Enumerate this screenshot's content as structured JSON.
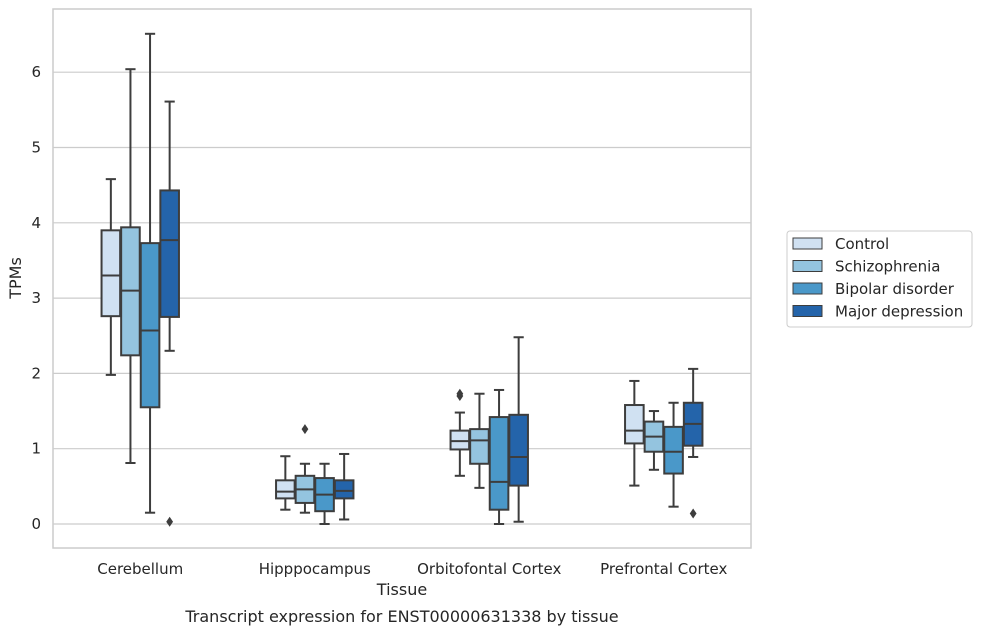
{
  "chart_data": {
    "type": "box",
    "caption": "Transcript expression for ENST00000631338 by tissue",
    "xlabel": "Tissue",
    "ylabel": "TPMs",
    "ylim": [
      -0.32,
      6.85
    ],
    "yticks": [
      0,
      1,
      2,
      3,
      4,
      5,
      6
    ],
    "grid": "horizontal",
    "legend_position": "right",
    "categories": [
      "Cerebellum",
      "Hipppocampus",
      "Orbitofontal Cortex",
      "Prefrontal Cortex"
    ],
    "series": [
      {
        "name": "Control",
        "color": "#d0e1f2",
        "boxes": [
          {
            "whislo": 1.98,
            "q1": 2.76,
            "med": 3.3,
            "q3": 3.9,
            "whishi": 4.58,
            "fliers": []
          },
          {
            "whislo": 0.19,
            "q1": 0.34,
            "med": 0.43,
            "q3": 0.58,
            "whishi": 0.9,
            "fliers": []
          },
          {
            "whislo": 0.64,
            "q1": 0.99,
            "med": 1.1,
            "q3": 1.24,
            "whishi": 1.48,
            "fliers": [
              1.7,
              1.73
            ]
          },
          {
            "whislo": 0.51,
            "q1": 1.07,
            "med": 1.24,
            "q3": 1.58,
            "whishi": 1.9,
            "fliers": []
          }
        ]
      },
      {
        "name": "Schizophrenia",
        "color": "#94c4df",
        "boxes": [
          {
            "whislo": 0.81,
            "q1": 2.24,
            "med": 3.1,
            "q3": 3.94,
            "whishi": 6.04,
            "fliers": []
          },
          {
            "whislo": 0.15,
            "q1": 0.28,
            "med": 0.46,
            "q3": 0.64,
            "whishi": 0.8,
            "fliers": [
              1.26
            ]
          },
          {
            "whislo": 0.48,
            "q1": 0.8,
            "med": 1.11,
            "q3": 1.26,
            "whishi": 1.73,
            "fliers": []
          },
          {
            "whislo": 0.72,
            "q1": 0.96,
            "med": 1.16,
            "q3": 1.36,
            "whishi": 1.5,
            "fliers": []
          }
        ]
      },
      {
        "name": "Bipolar disorder",
        "color": "#4a98c9",
        "boxes": [
          {
            "whislo": 0.15,
            "q1": 1.55,
            "med": 2.57,
            "q3": 3.73,
            "whishi": 6.51,
            "fliers": []
          },
          {
            "whislo": 0.0,
            "q1": 0.17,
            "med": 0.39,
            "q3": 0.61,
            "whishi": 0.8,
            "fliers": []
          },
          {
            "whislo": 0.0,
            "q1": 0.19,
            "med": 0.56,
            "q3": 1.42,
            "whishi": 1.78,
            "fliers": []
          },
          {
            "whislo": 0.23,
            "q1": 0.67,
            "med": 0.96,
            "q3": 1.29,
            "whishi": 1.61,
            "fliers": []
          }
        ]
      },
      {
        "name": "Major depression",
        "color": "#2464aa",
        "boxes": [
          {
            "whislo": 2.3,
            "q1": 2.75,
            "med": 3.77,
            "q3": 4.43,
            "whishi": 5.61,
            "fliers": [
              0.03
            ]
          },
          {
            "whislo": 0.06,
            "q1": 0.34,
            "med": 0.44,
            "q3": 0.58,
            "whishi": 0.93,
            "fliers": []
          },
          {
            "whislo": 0.03,
            "q1": 0.51,
            "med": 0.89,
            "q3": 1.45,
            "whishi": 2.48,
            "fliers": []
          },
          {
            "whislo": 0.89,
            "q1": 1.04,
            "med": 1.33,
            "q3": 1.61,
            "whishi": 2.06,
            "fliers": [
              0.14
            ]
          }
        ]
      }
    ]
  }
}
